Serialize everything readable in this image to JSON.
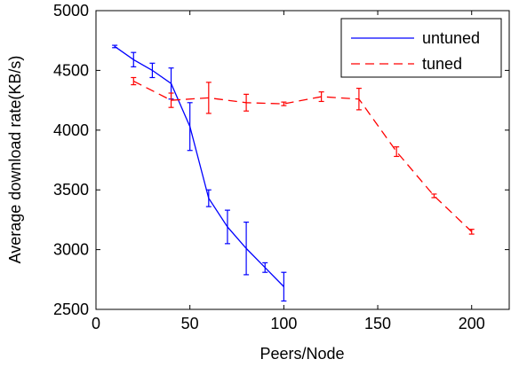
{
  "chart_data": {
    "type": "line",
    "title": "",
    "xlabel": "Peers/Node",
    "ylabel": "Average download rate(KB/s)",
    "xlim": [
      0,
      220
    ],
    "ylim": [
      2500,
      5000
    ],
    "x_ticks": [
      0,
      50,
      100,
      150,
      200
    ],
    "y_ticks": [
      2500,
      3000,
      3500,
      4000,
      4500,
      5000
    ],
    "grid": false,
    "legend_position": "top-right",
    "series": [
      {
        "name": "untuned",
        "color": "#0000ff",
        "line_style": "solid",
        "x": [
          10,
          20,
          30,
          40,
          50,
          60,
          70,
          80,
          90,
          100
        ],
        "y": [
          4700,
          4590,
          4500,
          4390,
          4030,
          3430,
          3190,
          3010,
          2850,
          2690
        ],
        "error": [
          10,
          60,
          60,
          130,
          200,
          70,
          140,
          220,
          40,
          120
        ]
      },
      {
        "name": "tuned",
        "color": "#ff0000",
        "line_style": "dashed",
        "x": [
          20,
          40,
          60,
          80,
          100,
          120,
          140,
          160,
          180,
          200
        ],
        "y": [
          4410,
          4250,
          4270,
          4230,
          4220,
          4280,
          4260,
          3820,
          3450,
          3150
        ],
        "error": [
          30,
          60,
          130,
          70,
          15,
          40,
          90,
          40,
          15,
          20
        ]
      }
    ]
  }
}
